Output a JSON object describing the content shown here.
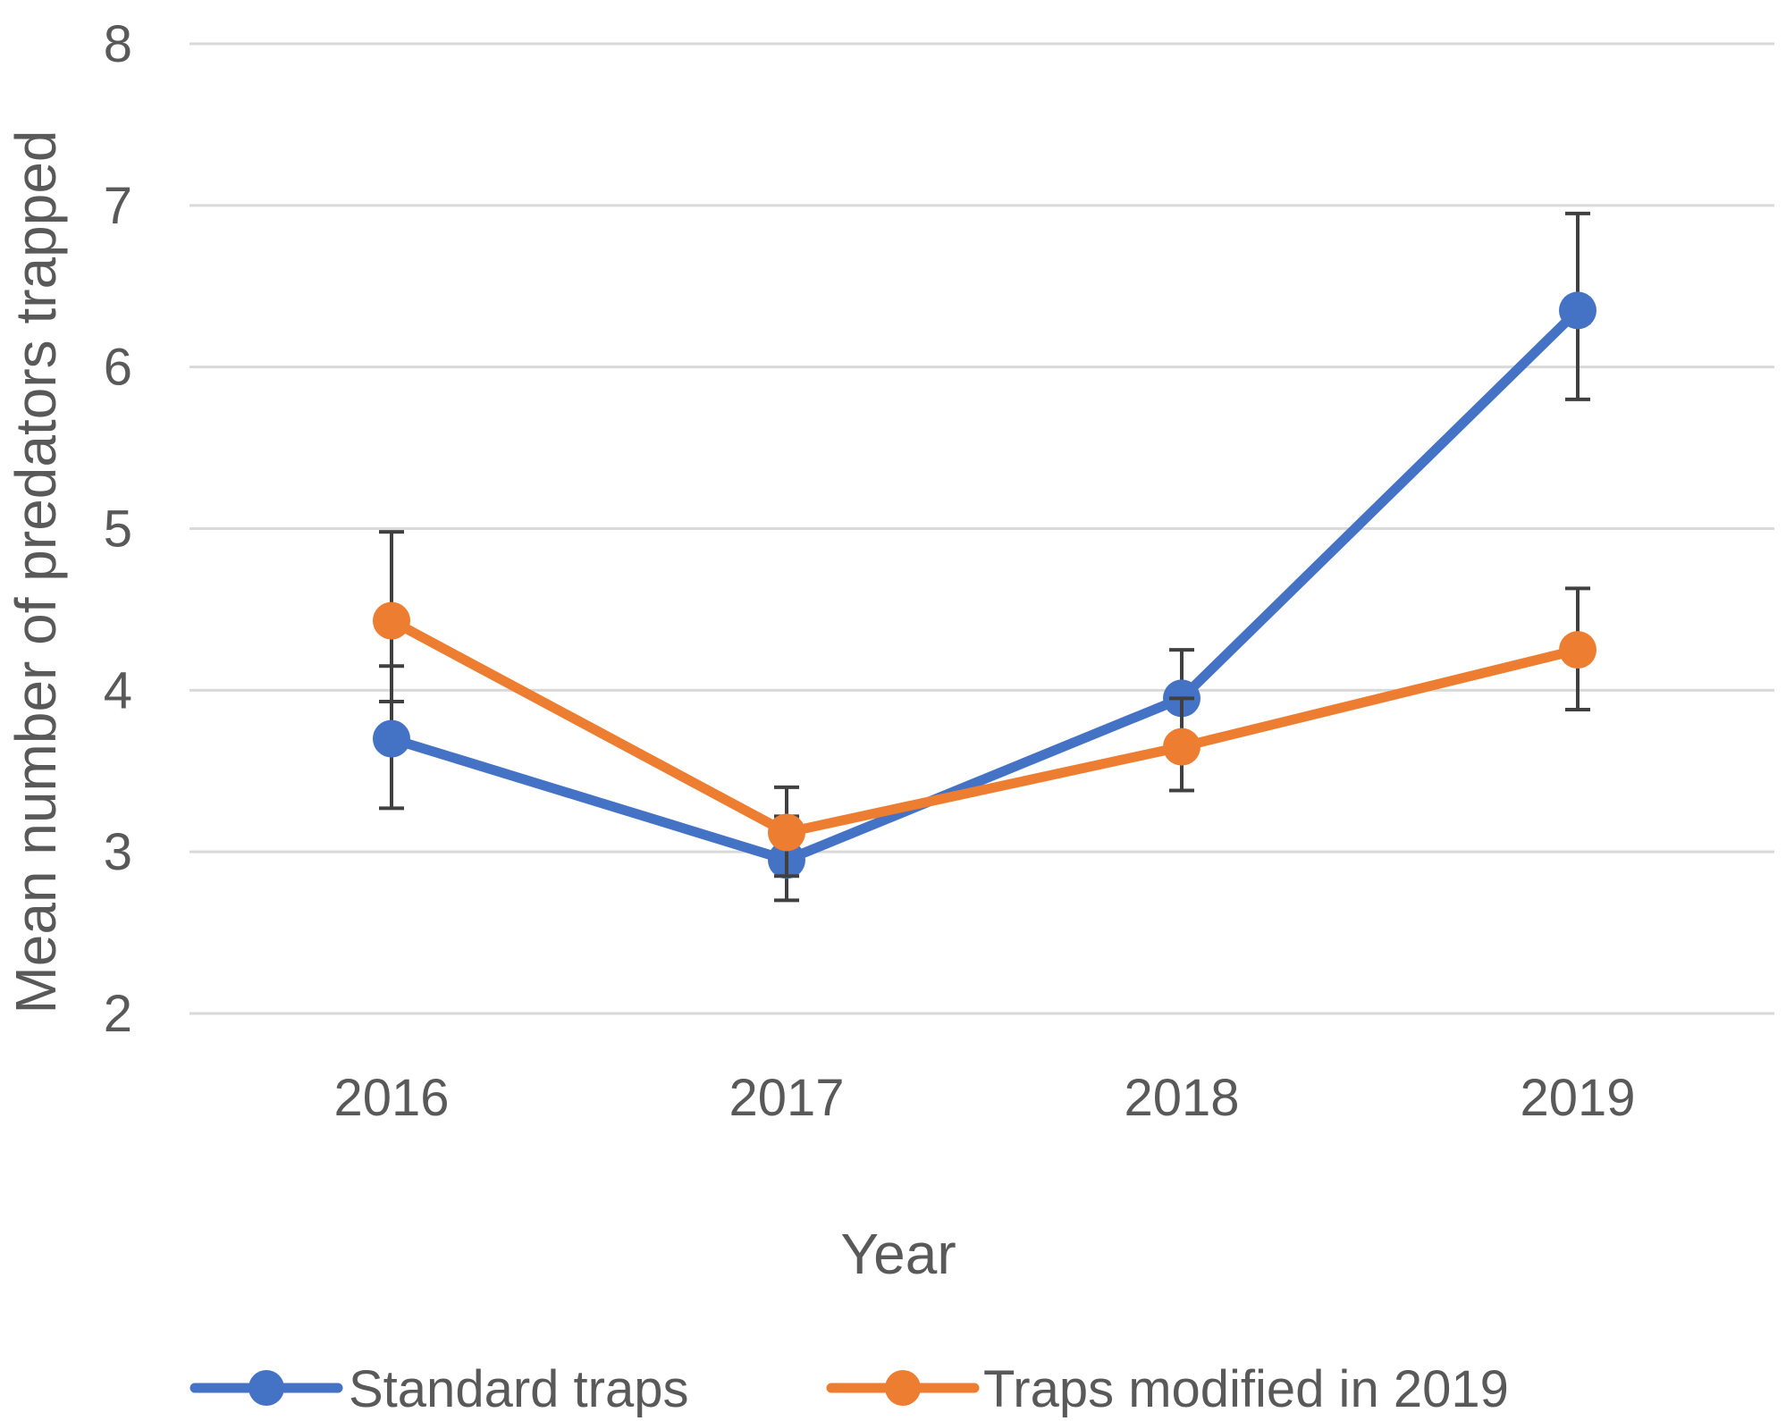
{
  "chart_data": {
    "type": "line",
    "title": "",
    "xlabel": "Year",
    "ylabel": "Mean number of predators trapped",
    "categories": [
      "2016",
      "2017",
      "2018",
      "2019"
    ],
    "ylim": [
      2,
      8
    ],
    "yticks": [
      2,
      3,
      4,
      5,
      6,
      7,
      8
    ],
    "ytick_labels": [
      "2",
      "3",
      "4",
      "5",
      "6",
      "7",
      "8"
    ],
    "grid": true,
    "legend_position": "bottom",
    "series": [
      {
        "name": "Standard traps",
        "color": "#4472c4",
        "values": [
          3.7,
          2.95,
          3.95,
          6.35
        ],
        "err_low": [
          3.27,
          2.7,
          3.65,
          5.8
        ],
        "err_high": [
          4.15,
          3.22,
          4.25,
          6.95
        ]
      },
      {
        "name": "Traps modified in 2019",
        "color": "#ed7d31",
        "values": [
          4.43,
          3.12,
          3.65,
          4.25
        ],
        "err_low": [
          3.93,
          2.85,
          3.38,
          3.88
        ],
        "err_high": [
          4.98,
          3.4,
          3.95,
          4.63
        ]
      }
    ]
  }
}
